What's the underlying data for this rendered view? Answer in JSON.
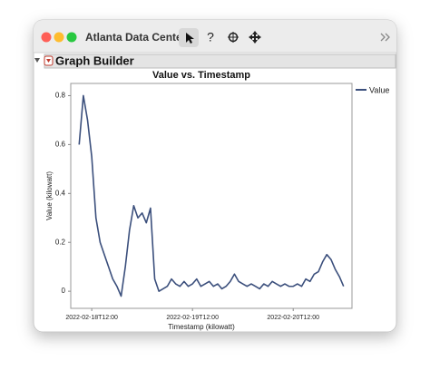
{
  "window": {
    "title": "Atlanta Data Cente…",
    "help": "?"
  },
  "panel": {
    "title": "Graph Builder"
  },
  "chart_data": {
    "type": "line",
    "title": "Value vs. Timestamp",
    "x_label": "Timestamp (kilowatt)",
    "y_label": "Value (kilowatt)",
    "x": [
      "2022-02-18T09:00",
      "2022-02-18T10:00",
      "2022-02-18T11:00",
      "2022-02-18T12:00",
      "2022-02-18T13:00",
      "2022-02-18T14:00",
      "2022-02-18T15:00",
      "2022-02-18T16:00",
      "2022-02-18T17:00",
      "2022-02-18T18:00",
      "2022-02-18T19:00",
      "2022-02-18T20:00",
      "2022-02-18T21:00",
      "2022-02-18T22:00",
      "2022-02-18T23:00",
      "2022-02-19T00:00",
      "2022-02-19T01:00",
      "2022-02-19T02:00",
      "2022-02-19T03:00",
      "2022-02-19T04:00",
      "2022-02-19T05:00",
      "2022-02-19T06:00",
      "2022-02-19T07:00",
      "2022-02-19T08:00",
      "2022-02-19T09:00",
      "2022-02-19T10:00",
      "2022-02-19T11:00",
      "2022-02-19T12:00",
      "2022-02-19T13:00",
      "2022-02-19T14:00",
      "2022-02-19T15:00",
      "2022-02-19T16:00",
      "2022-02-19T17:00",
      "2022-02-19T18:00",
      "2022-02-19T19:00",
      "2022-02-19T20:00",
      "2022-02-19T21:00",
      "2022-02-19T22:00",
      "2022-02-19T23:00",
      "2022-02-20T00:00",
      "2022-02-20T01:00",
      "2022-02-20T02:00",
      "2022-02-20T03:00",
      "2022-02-20T04:00",
      "2022-02-20T05:00",
      "2022-02-20T06:00",
      "2022-02-20T07:00",
      "2022-02-20T08:00",
      "2022-02-20T09:00",
      "2022-02-20T10:00",
      "2022-02-20T11:00",
      "2022-02-20T12:00",
      "2022-02-20T13:00",
      "2022-02-20T14:00",
      "2022-02-20T15:00",
      "2022-02-20T16:00",
      "2022-02-20T17:00",
      "2022-02-20T18:00",
      "2022-02-20T19:00",
      "2022-02-20T20:00",
      "2022-02-20T21:00",
      "2022-02-20T22:00",
      "2022-02-20T23:00",
      "2022-02-21T00:00"
    ],
    "series": [
      {
        "name": "Value",
        "color": "#3b4f7c",
        "values": [
          0.6,
          0.8,
          0.7,
          0.55,
          0.3,
          0.2,
          0.15,
          0.1,
          0.05,
          0.02,
          -0.02,
          0.1,
          0.25,
          0.35,
          0.3,
          0.32,
          0.28,
          0.34,
          0.05,
          0.0,
          0.01,
          0.02,
          0.05,
          0.03,
          0.02,
          0.04,
          0.02,
          0.03,
          0.05,
          0.02,
          0.03,
          0.04,
          0.02,
          0.03,
          0.01,
          0.02,
          0.04,
          0.07,
          0.04,
          0.03,
          0.02,
          0.03,
          0.02,
          0.01,
          0.03,
          0.02,
          0.04,
          0.03,
          0.02,
          0.03,
          0.02,
          0.02,
          0.03,
          0.02,
          0.05,
          0.04,
          0.07,
          0.08,
          0.12,
          0.15,
          0.13,
          0.09,
          0.06,
          0.02
        ]
      }
    ],
    "xlim": [
      "2022-02-18T07:00",
      "2022-02-21T02:00"
    ],
    "xticks": [
      "2022-02-18T12:00",
      "2022-02-19T12:00",
      "2022-02-20T12:00"
    ],
    "ylim": [
      -0.07,
      0.85
    ],
    "yticks": [
      0,
      0.2,
      0.4,
      0.6,
      0.8
    ],
    "grid": false,
    "legend": "right"
  }
}
